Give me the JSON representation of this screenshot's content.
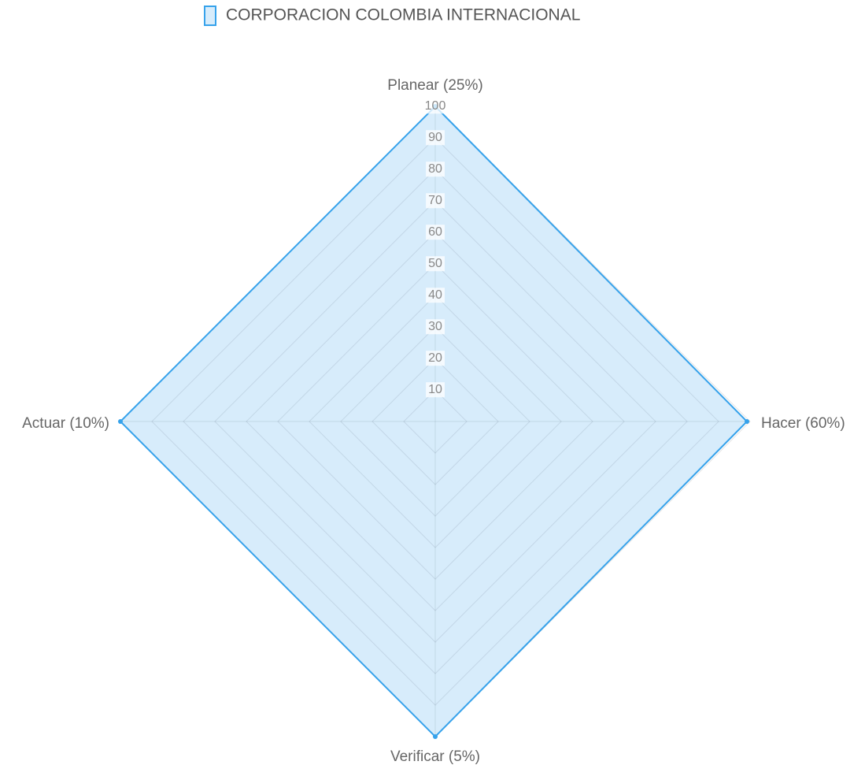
{
  "chart_data": {
    "type": "radar",
    "categories": [
      "Planear (25%)",
      "Hacer (60%)",
      "Verificar (5%)",
      "Actuar (10%)"
    ],
    "series": [
      {
        "name": "CORPORACION COLOMBIA INTERNACIONAL",
        "color": "#36a2eb",
        "values": [
          100,
          99,
          100,
          100
        ]
      }
    ],
    "rlim": [
      0,
      100
    ],
    "rticks": [
      10,
      20,
      30,
      40,
      50,
      60,
      70,
      80,
      90,
      100
    ],
    "grid": true,
    "legend": "top"
  }
}
